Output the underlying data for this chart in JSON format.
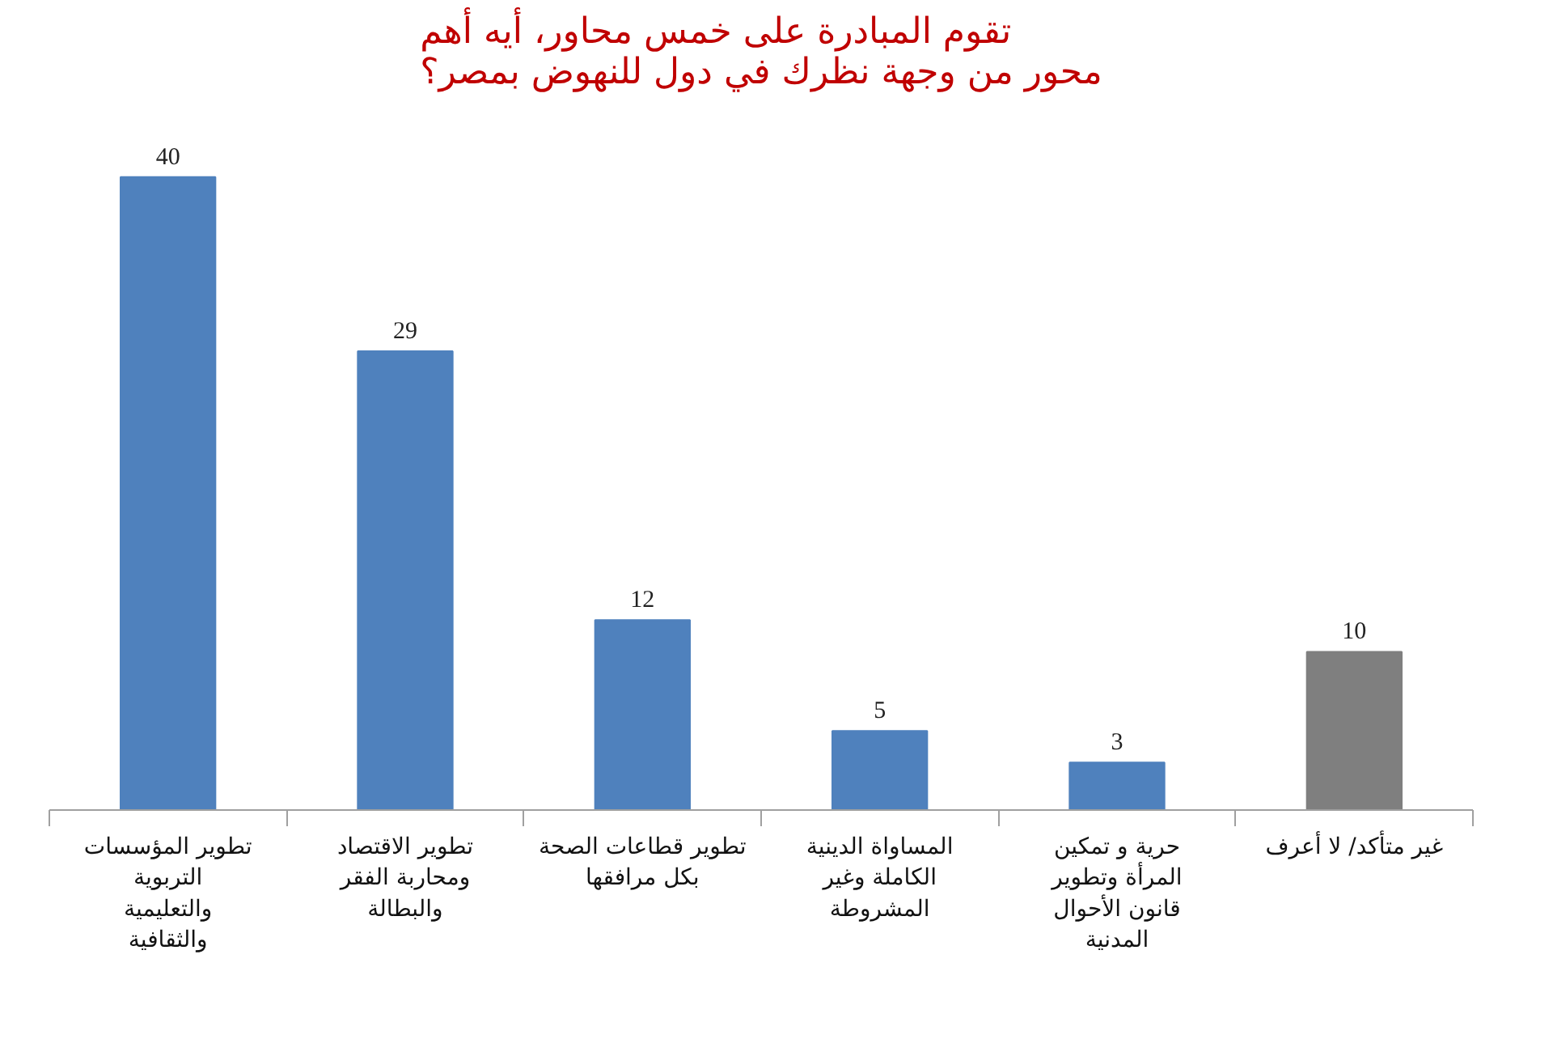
{
  "chart_data": {
    "type": "bar",
    "title": "تقوم المبادرة على خمس محاور، أيه أهم محور من وجهة نظرك في دول للنهوض بمصر؟",
    "categories": [
      "تطوير المؤسسات التربوية والتعليمية والثقافية",
      "تطوير الاقتصاد ومحاربة الفقر والبطالة",
      "تطوير قطاعات الصحة بكل مرافقها",
      "المساواة الدينية الكاملة وغير المشروطة",
      "حرية و تمكين المرأة وتطوير قانون الأحوال المدنية",
      "غير متأكد/ لا أعرف"
    ],
    "values": [
      40,
      29,
      12,
      5,
      3,
      10
    ],
    "colors": [
      "#4f81bd",
      "#4f81bd",
      "#4f81bd",
      "#4f81bd",
      "#4f81bd",
      "#7f7f7f"
    ],
    "data_labels": true
  }
}
